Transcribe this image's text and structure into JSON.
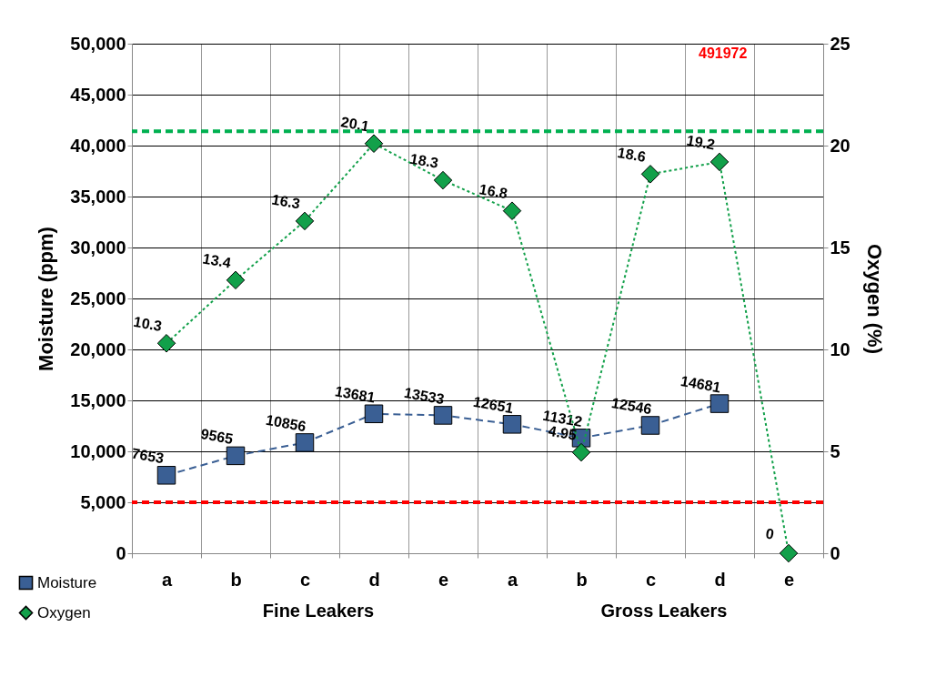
{
  "chart_data": {
    "type": "line",
    "categories": [
      "a",
      "b",
      "c",
      "d",
      "e",
      "a",
      "b",
      "c",
      "d",
      "e"
    ],
    "ylabel": "Moisture (ppm)",
    "y2label": "Oxygen  (%)",
    "series": [
      {
        "name": "Moisture",
        "color": "#3a5f94",
        "marker": "square",
        "line_style": "dashed",
        "values": [
          7653,
          9565,
          10856,
          13681,
          13533,
          12651,
          11312,
          12546,
          14681,
          null
        ]
      },
      {
        "name": "Oxygen",
        "color": "#12a04a",
        "marker": "diamond",
        "line_style": "dotted",
        "axis": "y2",
        "values": [
          10.3,
          13.4,
          16.3,
          20.1,
          18.3,
          16.8,
          4.95,
          18.6,
          19.2,
          0
        ]
      }
    ],
    "ylim": [
      0,
      50000
    ],
    "yticks": [
      {
        "value": 0,
        "label": "0"
      },
      {
        "value": 5000,
        "label": "5,000"
      },
      {
        "value": 10000,
        "label": "10,000"
      },
      {
        "value": 15000,
        "label": "15,000"
      },
      {
        "value": 20000,
        "label": "20,000"
      },
      {
        "value": 25000,
        "label": "25,000"
      },
      {
        "value": 30000,
        "label": "30,000"
      },
      {
        "value": 35000,
        "label": "35,000"
      },
      {
        "value": 40000,
        "label": "40,000"
      },
      {
        "value": 45000,
        "label": "45,000"
      },
      {
        "value": 50000,
        "label": "50,000"
      }
    ],
    "y2lim": [
      0,
      25
    ],
    "y2ticks": [
      0,
      5,
      10,
      15,
      20,
      25
    ],
    "ref_lines": [
      {
        "axis": "y",
        "value": 5000,
        "color": "#ff0000",
        "line_style": "dashed"
      },
      {
        "axis": "y2",
        "value": 20.7,
        "color": "#00b050",
        "line_style": "dashed"
      }
    ],
    "annotations": [
      "Fine Leakers",
      "Gross Leakers",
      "491972"
    ],
    "data_labels": true,
    "grid": true,
    "legend": "bottom left"
  }
}
